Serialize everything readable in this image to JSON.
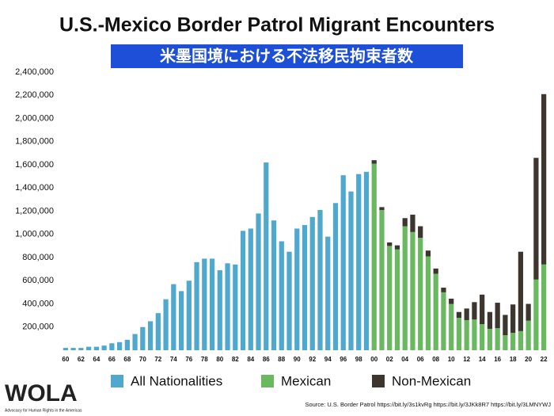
{
  "chart_data": {
    "type": "bar",
    "stacked": true,
    "title": "U.S.-Mexico Border Patrol Migrant Encounters",
    "subtitle": "米墨国境における不法移民拘束者数",
    "categories": [
      "60",
      null,
      "62",
      null,
      "64",
      null,
      "66",
      null,
      "68",
      null,
      "70",
      null,
      "72",
      null,
      "74",
      null,
      "76",
      null,
      "78",
      null,
      "80",
      null,
      "82",
      null,
      "84",
      null,
      "86",
      null,
      "88",
      null,
      "90",
      null,
      "92",
      null,
      "94",
      null,
      "96",
      null,
      "98",
      null,
      "00",
      null,
      "02",
      null,
      "04",
      null,
      "06",
      null,
      "08",
      null,
      "10",
      null,
      "12",
      null,
      "14",
      null,
      "16",
      null,
      "18",
      null,
      "20",
      null,
      "22"
    ],
    "series": [
      {
        "name": "All Nationalities",
        "color": "#4fa8cd",
        "values": [
          20000,
          20000,
          20000,
          30000,
          30000,
          40000,
          60000,
          70000,
          90000,
          140000,
          200000,
          250000,
          320000,
          440000,
          570000,
          510000,
          600000,
          760000,
          790000,
          790000,
          690000,
          750000,
          740000,
          1030000,
          1050000,
          1180000,
          1620000,
          1120000,
          940000,
          850000,
          1050000,
          1080000,
          1150000,
          1210000,
          980000,
          1270000,
          1510000,
          1370000,
          1520000,
          1540000,
          null,
          null,
          null,
          null,
          null,
          null,
          null,
          null,
          null,
          null,
          null,
          null,
          null,
          null,
          null,
          null,
          null,
          null,
          null,
          null,
          null,
          null,
          null
        ]
      },
      {
        "name": "Mexican",
        "color": "#6ab961",
        "values": [
          null,
          null,
          null,
          null,
          null,
          null,
          null,
          null,
          null,
          null,
          null,
          null,
          null,
          null,
          null,
          null,
          null,
          null,
          null,
          null,
          null,
          null,
          null,
          null,
          null,
          null,
          null,
          null,
          null,
          null,
          null,
          null,
          null,
          null,
          null,
          null,
          null,
          null,
          null,
          null,
          1610000,
          1210000,
          900000,
          870000,
          1070000,
          1020000,
          970000,
          810000,
          660000,
          500000,
          400000,
          280000,
          260000,
          265000,
          225000,
          185000,
          190000,
          130000,
          150000,
          165000,
          255000,
          610000,
          740000
        ]
      },
      {
        "name": "Non-Mexican",
        "color": "#3d362f",
        "values": [
          null,
          null,
          null,
          null,
          null,
          null,
          null,
          null,
          null,
          null,
          null,
          null,
          null,
          null,
          null,
          null,
          null,
          null,
          null,
          null,
          null,
          null,
          null,
          null,
          null,
          null,
          null,
          null,
          null,
          null,
          null,
          null,
          null,
          null,
          null,
          null,
          null,
          null,
          null,
          null,
          30000,
          25000,
          30000,
          35000,
          70000,
          150000,
          100000,
          50000,
          45000,
          40000,
          45000,
          50000,
          100000,
          150000,
          255000,
          145000,
          220000,
          175000,
          245000,
          685000,
          145000,
          1050000,
          1470000
        ]
      }
    ],
    "ylim": [
      0,
      2400000
    ],
    "yticks": [
      {
        "value": 200000,
        "label": "200,000"
      },
      {
        "value": 400000,
        "label": "400,000"
      },
      {
        "value": 600000,
        "label": "600,000"
      },
      {
        "value": 800000,
        "label": "800,000"
      },
      {
        "value": 1000000,
        "label": "1,000,000"
      },
      {
        "value": 1200000,
        "label": "1,200,000"
      },
      {
        "value": 1400000,
        "label": "1,400,000"
      },
      {
        "value": 1600000,
        "label": "1,600,000"
      },
      {
        "value": 1800000,
        "label": "1,800,000"
      },
      {
        "value": 2000000,
        "label": "2,000,000"
      },
      {
        "value": 2200000,
        "label": "2,200,000"
      },
      {
        "value": 2400000,
        "label": "2,400,000"
      }
    ],
    "source": "Source: U.S. Border Patrol https://bit.ly/3s1kvRg  https://bit.ly/3JKk8R7 https://bit.ly/3LMNYWJ",
    "logo": {
      "name": "WOLA",
      "tagline": "Advocacy for Human Rights in the Americas"
    }
  }
}
